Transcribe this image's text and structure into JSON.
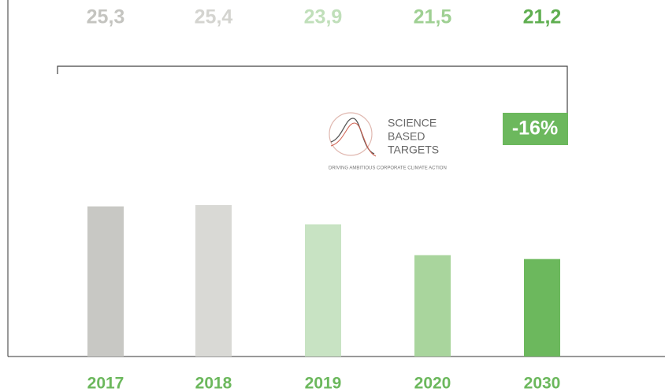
{
  "chart_data": {
    "type": "bar",
    "categories": [
      "2017",
      "2018",
      "2019",
      "2020",
      "2030"
    ],
    "values": [
      25.3,
      25.4,
      23.9,
      21.5,
      21.2
    ],
    "value_labels": [
      "25,3",
      "25,4",
      "23,9",
      "21,5",
      "21,2"
    ],
    "colors": [
      "#c8c8c4",
      "#d9d9d5",
      "#c8e3c3",
      "#a9d59d",
      "#6cb85d"
    ],
    "label_colors": [
      "#c4c4c0",
      "#d4d4d0",
      "#c0dfba",
      "#9fd093",
      "#5fae50"
    ],
    "ylim": [
      13.6,
      27
    ],
    "annotation": "-16%",
    "logo": {
      "title_lines": [
        "SCIENCE",
        "BASED",
        "TARGETS"
      ],
      "tagline": "DRIVING AMBITIOUS CORPORATE CLIMATE ACTION"
    }
  }
}
